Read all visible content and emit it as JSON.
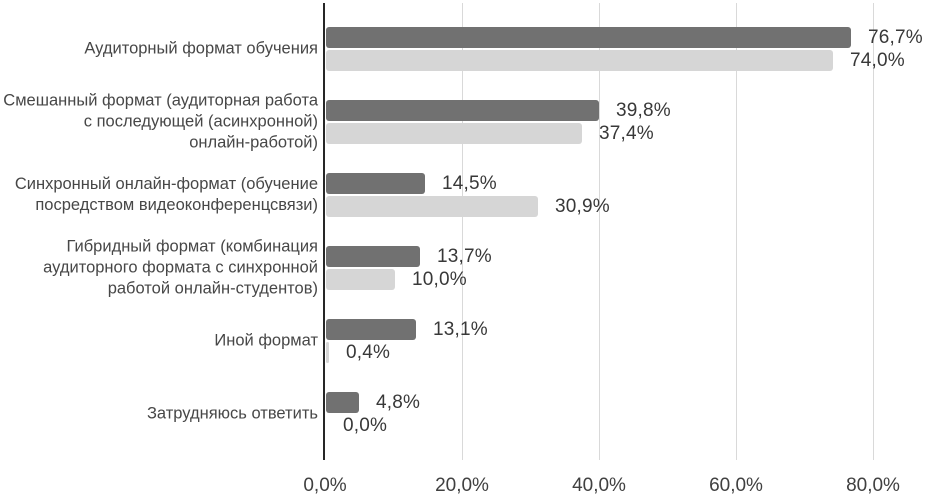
{
  "chart_data": {
    "type": "bar",
    "orientation": "horizontal",
    "title": "",
    "legend": "none",
    "grid": true,
    "categories": [
      {
        "lines": [
          "Аудиторный формат обучения"
        ]
      },
      {
        "lines": [
          "Смешанный формат (аудиторная работа",
          "с последующей (асинхронной)",
          "онлайн-работой)"
        ]
      },
      {
        "lines": [
          "Синхронный онлайн-формат (обучение",
          "посредством видеоконференцсвязи)"
        ]
      },
      {
        "lines": [
          "Гибридный формат (комбинация",
          "аудиторного формата с синхронной",
          "работой онлайн-студентов)"
        ]
      },
      {
        "lines": [
          "Иной формат"
        ]
      },
      {
        "lines": [
          "Затрудняюсь ответить"
        ]
      }
    ],
    "series": [
      {
        "name": "series-dark",
        "color": "#717171",
        "values": [
          76.7,
          39.8,
          14.5,
          13.7,
          13.1,
          4.8
        ],
        "labels": [
          "76,7%",
          "39,8%",
          "14,5%",
          "13,7%",
          "13,1%",
          "4,8%"
        ]
      },
      {
        "name": "series-light",
        "color": "#d6d6d6",
        "values": [
          74.0,
          37.4,
          30.9,
          10.0,
          0.4,
          0.0
        ],
        "labels": [
          "74,0%",
          "37,4%",
          "30,9%",
          "10,0%",
          "0,4%",
          "0,0%"
        ]
      }
    ],
    "x_axis": {
      "max_shown": 80,
      "ticks": [
        {
          "value": 0,
          "label": "0,0%"
        },
        {
          "value": 20,
          "label": "20,0%"
        },
        {
          "value": 40,
          "label": "40,0%"
        },
        {
          "value": 60,
          "label": "60,0%"
        },
        {
          "value": 80,
          "label": "80,0%"
        }
      ]
    },
    "colors": {
      "background": "#ffffff",
      "axis_line": "#262626",
      "gridline": "#d9d9d9",
      "category_text": "#474747",
      "value_text": "#383838",
      "tick_text": "#404040"
    }
  }
}
